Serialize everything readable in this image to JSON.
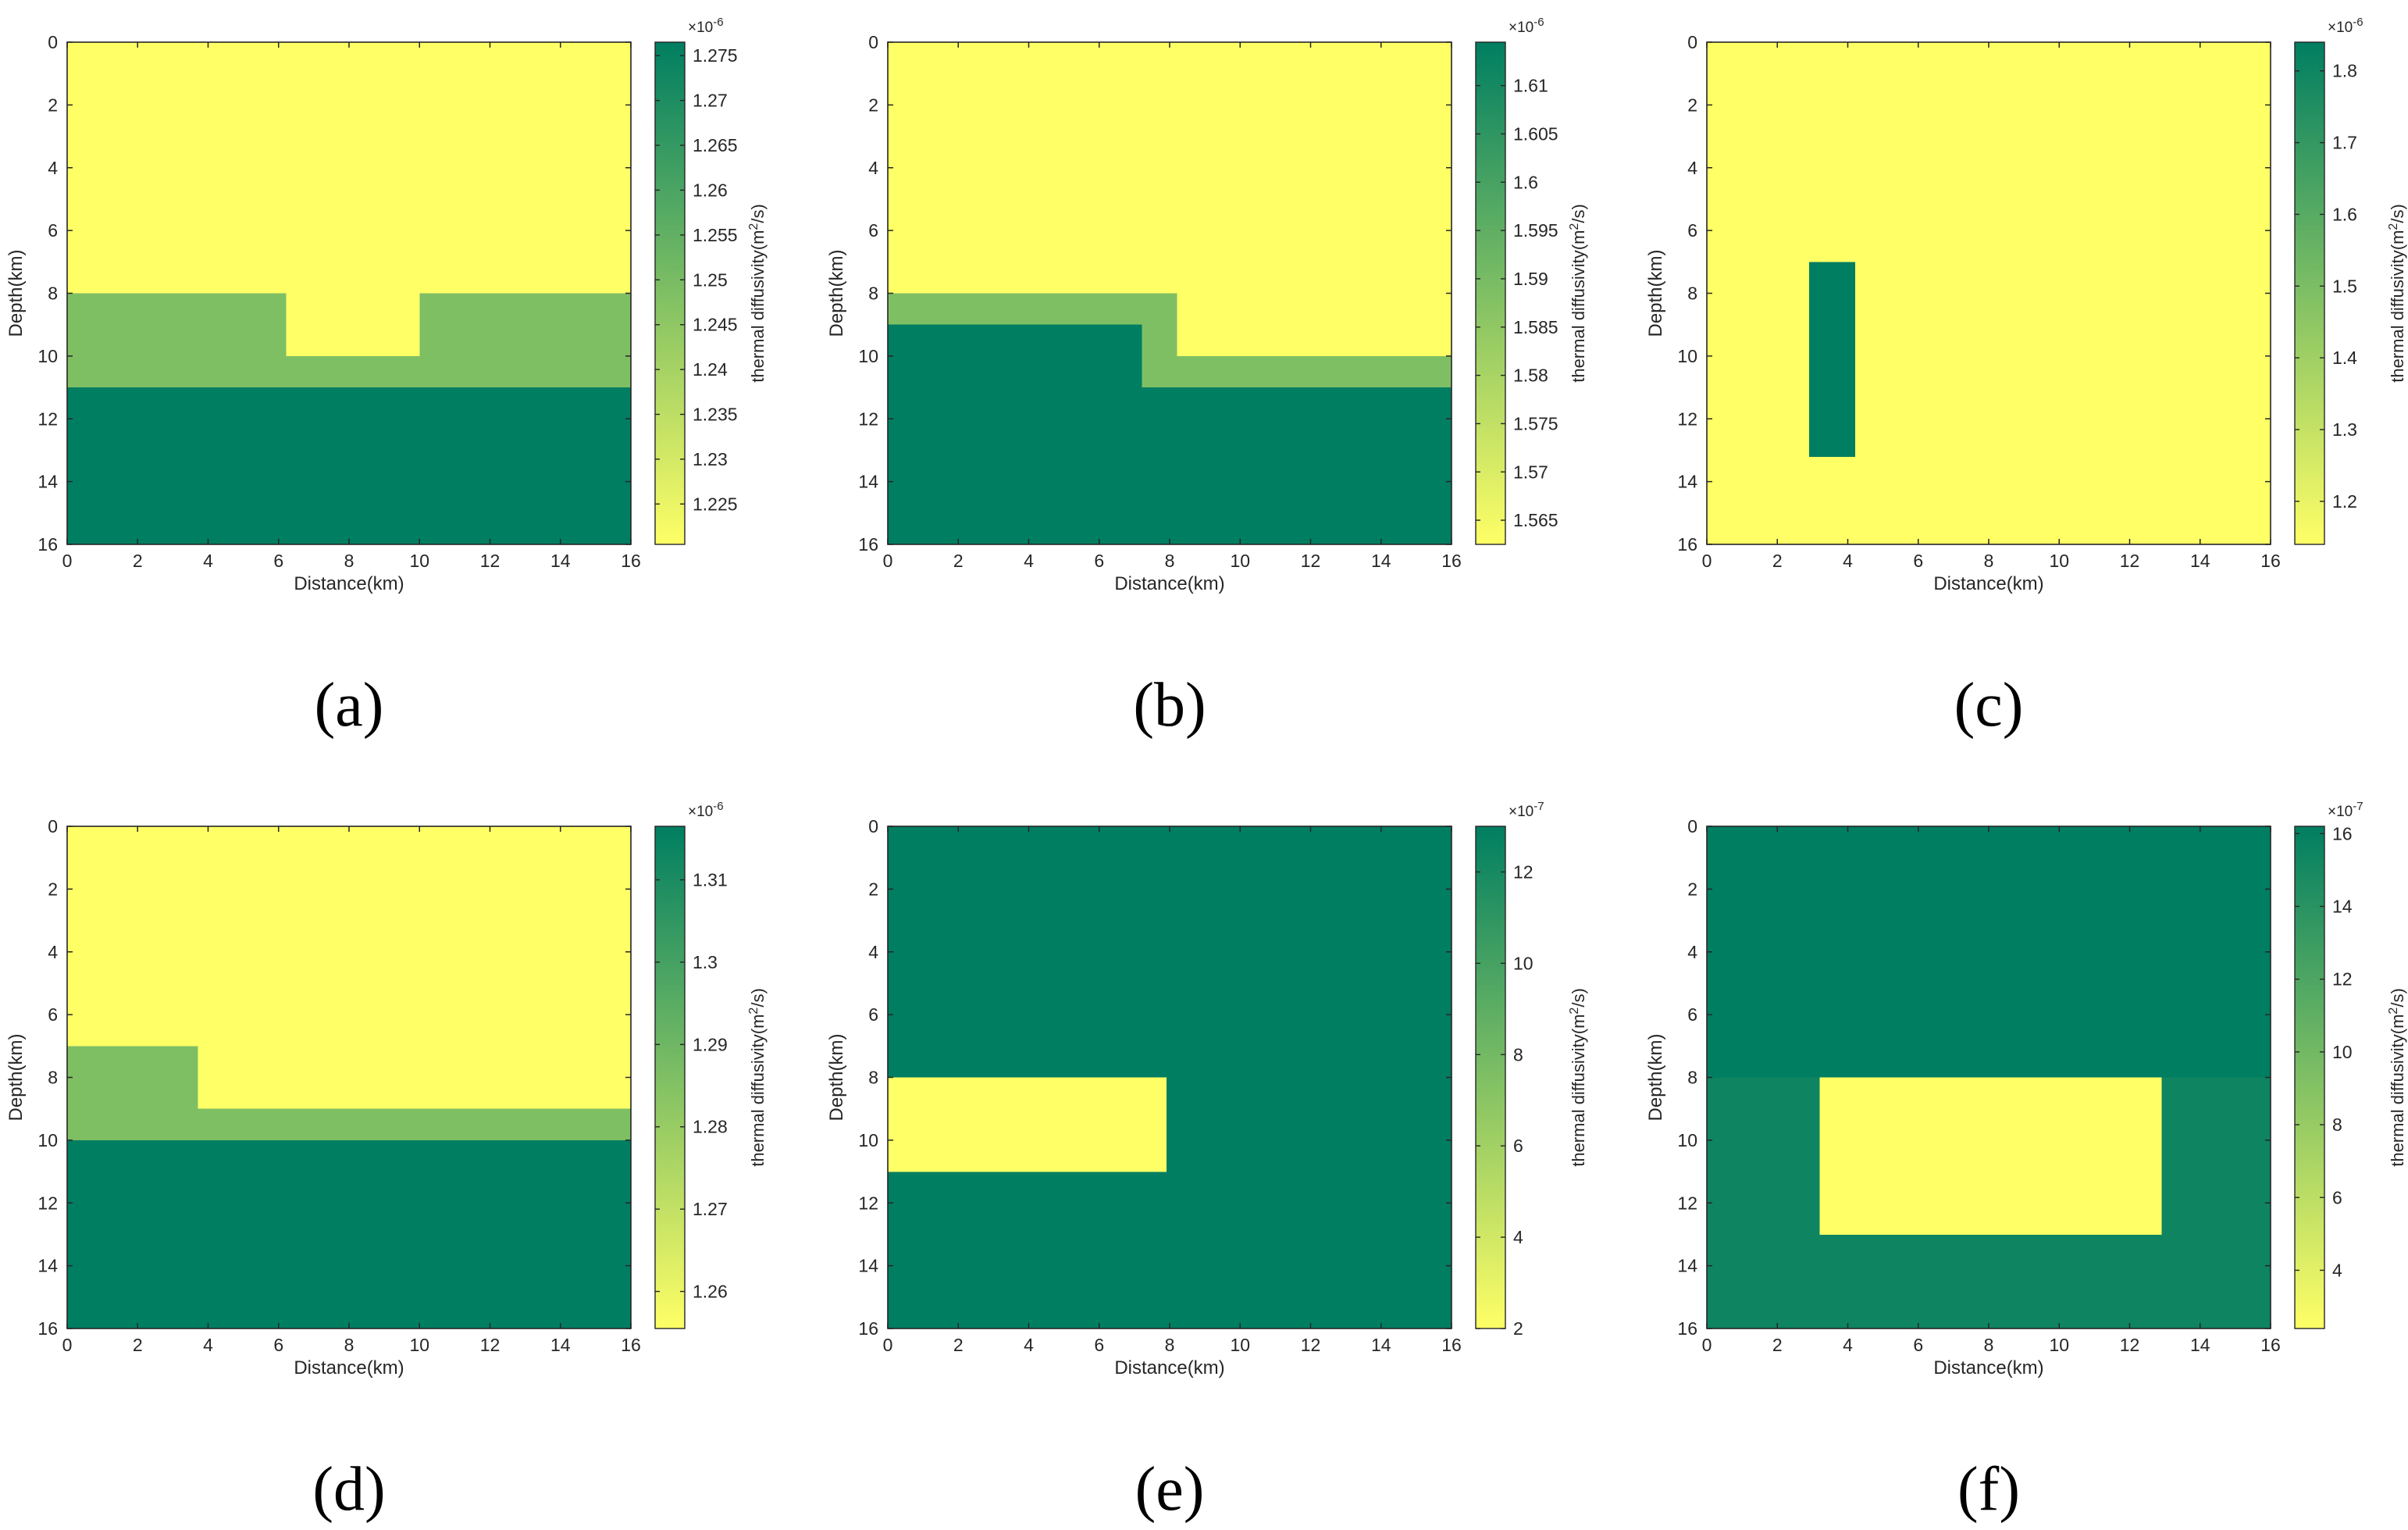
{
  "colors": {
    "low": "#ffff66",
    "high": "#007e61",
    "mid_green": "#7fbf64",
    "mid_dark": "#0e8460"
  },
  "common": {
    "xlabel": "Distance(km)",
    "ylabel": "Depth(km)",
    "colorbar_label_main": "thermal diffusivity(m",
    "colorbar_label_sup": "2",
    "colorbar_label_end": "/s)",
    "x_ticks": [
      "0",
      "2",
      "4",
      "6",
      "8",
      "10",
      "12",
      "14",
      "16"
    ],
    "y_ticks": [
      "0",
      "2",
      "4",
      "6",
      "8",
      "10",
      "12",
      "14",
      "16"
    ]
  },
  "chart_data": [
    {
      "type": "heatmap",
      "caption": "(a)",
      "xlabel": "Distance(km)",
      "ylabel": "Depth(km)",
      "xlim": [
        0,
        16
      ],
      "ylim": [
        16,
        0
      ],
      "colorbar": {
        "label": "thermal diffusivity(m2/s)",
        "exponent_base": "×10",
        "exponent": "-6",
        "min": 1.2205,
        "max": 1.2765,
        "ticks": [
          "1.225",
          "1.23",
          "1.235",
          "1.24",
          "1.245",
          "1.25",
          "1.255",
          "1.26",
          "1.265",
          "1.27",
          "1.275"
        ]
      },
      "regions": [
        {
          "x0": 0,
          "x1": 16,
          "y0": 0,
          "y1": 16,
          "color": "low"
        },
        {
          "x0": 0,
          "x1": 6.2,
          "y0": 8,
          "y1": 11,
          "color": "mid_green"
        },
        {
          "x0": 10,
          "x1": 16,
          "y0": 8,
          "y1": 11,
          "color": "mid_green"
        },
        {
          "x0": 6.2,
          "x1": 10,
          "y0": 10,
          "y1": 11,
          "color": "mid_green"
        },
        {
          "x0": 0,
          "x1": 16,
          "y0": 11,
          "y1": 16,
          "color": "high"
        }
      ]
    },
    {
      "type": "heatmap",
      "caption": "(b)",
      "xlabel": "Distance(km)",
      "ylabel": "Depth(km)",
      "xlim": [
        0,
        16
      ],
      "ylim": [
        16,
        0
      ],
      "colorbar": {
        "label": "thermal diffusivity(m2/s)",
        "exponent_base": "×10",
        "exponent": "-6",
        "min": 1.5625,
        "max": 1.6145,
        "ticks": [
          "1.565",
          "1.57",
          "1.575",
          "1.58",
          "1.585",
          "1.59",
          "1.595",
          "1.6",
          "1.605",
          "1.61"
        ]
      },
      "regions": [
        {
          "x0": 0,
          "x1": 16,
          "y0": 0,
          "y1": 16,
          "color": "low"
        },
        {
          "x0": 0,
          "x1": 8.2,
          "y0": 8,
          "y1": 9,
          "color": "mid_green"
        },
        {
          "x0": 7.2,
          "x1": 16,
          "y0": 10,
          "y1": 11,
          "color": "mid_green"
        },
        {
          "x0": 7.2,
          "x1": 8.2,
          "y0": 9,
          "y1": 10,
          "color": "mid_green"
        },
        {
          "x0": 0,
          "x1": 7.2,
          "y0": 9,
          "y1": 11,
          "color": "high"
        },
        {
          "x0": 0,
          "x1": 16,
          "y0": 11,
          "y1": 16,
          "color": "high"
        }
      ]
    },
    {
      "type": "heatmap",
      "caption": "(c)",
      "xlabel": "Distance(km)",
      "ylabel": "Depth(km)",
      "xlim": [
        0,
        16
      ],
      "ylim": [
        16,
        0
      ],
      "colorbar": {
        "label": "thermal diffusivity(m2/s)",
        "exponent_base": "×10",
        "exponent": "-6",
        "min": 1.14,
        "max": 1.84,
        "ticks": [
          "1.2",
          "1.3",
          "1.4",
          "1.5",
          "1.6",
          "1.7",
          "1.8"
        ]
      },
      "regions": [
        {
          "x0": 0,
          "x1": 16,
          "y0": 0,
          "y1": 16,
          "color": "low"
        },
        {
          "x0": 2.9,
          "x1": 4.2,
          "y0": 7,
          "y1": 13.2,
          "color": "high"
        }
      ]
    },
    {
      "type": "heatmap",
      "caption": "(d)",
      "xlabel": "Distance(km)",
      "ylabel": "Depth(km)",
      "xlim": [
        0,
        16
      ],
      "ylim": [
        16,
        0
      ],
      "colorbar": {
        "label": "thermal diffusivity(m2/s)",
        "exponent_base": "×10",
        "exponent": "-6",
        "min": 1.2555,
        "max": 1.3165,
        "ticks": [
          "1.26",
          "1.27",
          "1.28",
          "1.29",
          "1.3",
          "1.31"
        ]
      },
      "regions": [
        {
          "x0": 0,
          "x1": 16,
          "y0": 0,
          "y1": 16,
          "color": "low"
        },
        {
          "x0": 0,
          "x1": 3.7,
          "y0": 7,
          "y1": 10,
          "color": "mid_green"
        },
        {
          "x0": 3.7,
          "x1": 16,
          "y0": 9,
          "y1": 10,
          "color": "mid_green"
        },
        {
          "x0": 0,
          "x1": 16,
          "y0": 10,
          "y1": 16,
          "color": "high"
        }
      ]
    },
    {
      "type": "heatmap",
      "caption": "(e)",
      "xlabel": "Distance(km)",
      "ylabel": "Depth(km)",
      "xlim": [
        0,
        16
      ],
      "ylim": [
        16,
        0
      ],
      "colorbar": {
        "label": "thermal diffusivity(m2/s)",
        "exponent_base": "×10",
        "exponent": "-7",
        "min": 2,
        "max": 13,
        "ticks": [
          "2",
          "4",
          "6",
          "8",
          "10",
          "12"
        ]
      },
      "regions": [
        {
          "x0": 0,
          "x1": 16,
          "y0": 0,
          "y1": 16,
          "color": "high"
        },
        {
          "x0": 0,
          "x1": 7.9,
          "y0": 8,
          "y1": 11,
          "color": "low"
        }
      ]
    },
    {
      "type": "heatmap",
      "caption": "(f)",
      "xlabel": "Distance(km)",
      "ylabel": "Depth(km)",
      "xlim": [
        0,
        16
      ],
      "ylim": [
        16,
        0
      ],
      "colorbar": {
        "label": "thermal diffusivity(m2/s)",
        "exponent_base": "×10",
        "exponent": "-7",
        "min": 2.4,
        "max": 16.2,
        "ticks": [
          "4",
          "6",
          "8",
          "10",
          "12",
          "14",
          "16"
        ]
      },
      "regions": [
        {
          "x0": 0,
          "x1": 16,
          "y0": 0,
          "y1": 8,
          "color": "high"
        },
        {
          "x0": 0,
          "x1": 16,
          "y0": 8,
          "y1": 16,
          "color": "mid_dark"
        },
        {
          "x0": 3.2,
          "x1": 12.9,
          "y0": 8,
          "y1": 13,
          "color": "low"
        }
      ]
    }
  ]
}
